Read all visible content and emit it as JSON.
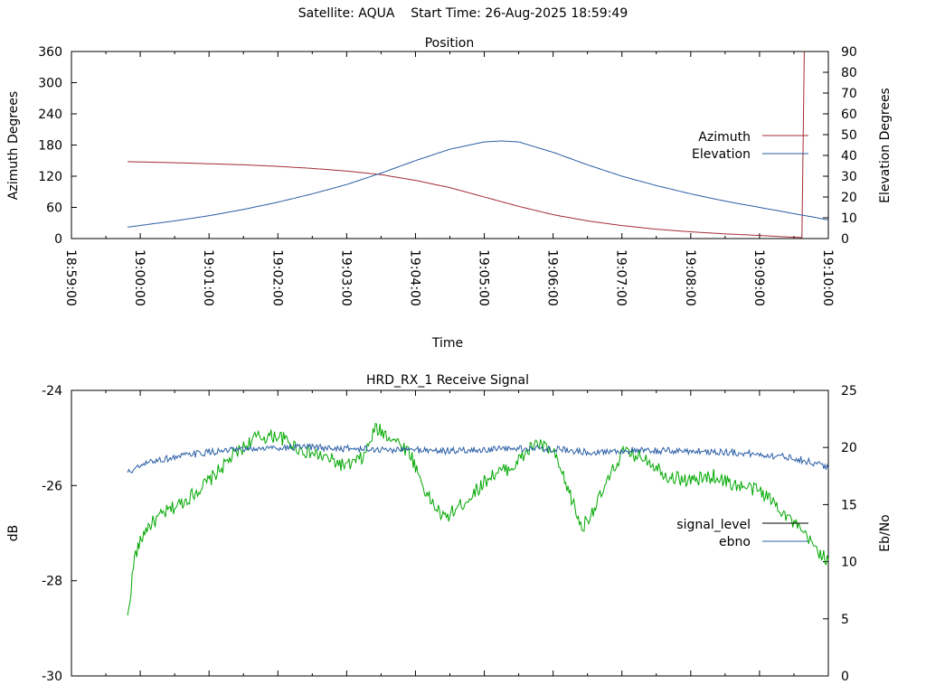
{
  "header": {
    "satellite_label": "Satellite: AQUA",
    "start_label": "Start Time: 26-Aug-2025 18:59:49"
  },
  "colors": {
    "azimuth": "#a32a35",
    "elevation": "#2a5ea5",
    "signal_level": "#00a800",
    "ebno": "#2a5ea5",
    "axis": "#000000"
  },
  "chart_data": [
    {
      "type": "line",
      "title": "Position",
      "xlabel": "Time",
      "ylabel": "Azimuth Degrees",
      "y2label": "Elevation Degrees",
      "xlim": [
        "18:59:00",
        "19:10:00"
      ],
      "ylim": [
        0,
        360
      ],
      "y2lim": [
        0,
        90
      ],
      "x_ticks": [
        "18:59:00",
        "19:00:00",
        "19:01:00",
        "19:02:00",
        "19:03:00",
        "19:04:00",
        "19:05:00",
        "19:06:00",
        "19:07:00",
        "19:08:00",
        "19:09:00",
        "19:10:00"
      ],
      "y_ticks": [
        "0",
        "60",
        "120",
        "180",
        "240",
        "300",
        "360"
      ],
      "y2_ticks": [
        "0",
        "10",
        "20",
        "30",
        "40",
        "50",
        "60",
        "70",
        "80",
        "90"
      ],
      "legend_position": "right",
      "series": [
        {
          "name": "Azimuth",
          "axis": "y",
          "x": [
            "18:59:49",
            "19:00:30",
            "19:01:00",
            "19:01:30",
            "19:02:00",
            "19:02:30",
            "19:03:00",
            "19:03:30",
            "19:04:00",
            "19:04:30",
            "19:05:00",
            "19:05:30",
            "19:06:00",
            "19:06:30",
            "19:07:00",
            "19:07:30",
            "19:08:00",
            "19:08:30",
            "19:09:00",
            "19:09:25",
            "19:09:38",
            "19:09:39"
          ],
          "y": [
            148,
            146,
            144,
            142,
            139,
            135,
            130,
            123,
            112,
            98,
            80,
            62,
            46,
            34,
            25,
            18,
            13,
            9,
            6,
            3,
            2,
            360
          ]
        },
        {
          "name": "Elevation",
          "axis": "y2",
          "x": [
            "18:59:49",
            "19:00:30",
            "19:01:00",
            "19:01:30",
            "19:02:00",
            "19:02:30",
            "19:03:00",
            "19:03:30",
            "19:04:00",
            "19:04:30",
            "19:05:00",
            "19:05:15",
            "19:05:30",
            "19:06:00",
            "19:06:30",
            "19:07:00",
            "19:07:30",
            "19:08:00",
            "19:08:30",
            "19:09:00",
            "19:09:30",
            "19:10:00"
          ],
          "y": [
            5.5,
            8.5,
            11,
            14,
            17.5,
            21.5,
            26,
            31.5,
            37.5,
            43,
            46.5,
            47,
            46.5,
            41.5,
            35.5,
            30,
            25.5,
            21.5,
            18,
            15,
            12,
            9
          ]
        }
      ]
    },
    {
      "type": "line",
      "title": "HRD_RX_1 Receive Signal",
      "xlabel": "",
      "ylabel": "dB",
      "y2label": "Eb/No",
      "xlim": [
        "18:59:00",
        "19:10:00"
      ],
      "ylim": [
        -30,
        -24
      ],
      "y2lim": [
        0,
        25
      ],
      "y_ticks": [
        "-30",
        "-28",
        "-26",
        "-24"
      ],
      "y2_ticks": [
        "0",
        "5",
        "10",
        "15",
        "20",
        "25"
      ],
      "legend_position": "right",
      "series": [
        {
          "name": "signal_level",
          "axis": "y",
          "x": [
            "18:59:49",
            "18:59:55",
            "19:00:05",
            "19:00:20",
            "19:00:40",
            "19:01:00",
            "19:01:20",
            "19:01:40",
            "19:02:00",
            "19:02:20",
            "19:02:40",
            "19:03:00",
            "19:03:15",
            "19:03:25",
            "19:03:40",
            "19:03:55",
            "19:04:10",
            "19:04:25",
            "19:04:45",
            "19:05:05",
            "19:05:25",
            "19:05:45",
            "19:06:00",
            "19:06:15",
            "19:06:25",
            "19:06:40",
            "19:07:00",
            "19:07:20",
            "19:07:40",
            "19:08:00",
            "19:08:20",
            "19:08:40",
            "19:09:00",
            "19:09:15",
            "19:09:30",
            "19:09:45",
            "19:10:00"
          ],
          "y": [
            -28.8,
            -27.5,
            -26.9,
            -26.6,
            -26.3,
            -25.9,
            -25.4,
            -25.0,
            -24.95,
            -25.25,
            -25.4,
            -25.6,
            -25.4,
            -24.8,
            -25.0,
            -25.3,
            -26.2,
            -26.7,
            -26.3,
            -25.8,
            -25.6,
            -25.1,
            -25.3,
            -26.2,
            -26.9,
            -26.3,
            -25.3,
            -25.4,
            -25.8,
            -25.9,
            -25.8,
            -26.0,
            -26.1,
            -26.4,
            -26.8,
            -27.2,
            -27.6
          ],
          "noise_amplitude": 0.15
        },
        {
          "name": "ebno",
          "axis": "y2",
          "x": [
            "18:59:49",
            "19:00:10",
            "19:00:40",
            "19:01:00",
            "19:01:30",
            "19:02:00",
            "19:02:30",
            "19:03:00",
            "19:03:30",
            "19:04:00",
            "19:04:30",
            "19:05:00",
            "19:05:30",
            "19:06:00",
            "19:06:30",
            "19:07:00",
            "19:07:30",
            "19:08:00",
            "19:08:30",
            "19:09:00",
            "19:09:30",
            "19:10:00"
          ],
          "y": [
            17.8,
            18.8,
            19.3,
            19.6,
            19.8,
            20.0,
            20.0,
            19.9,
            19.8,
            19.8,
            19.7,
            19.8,
            19.9,
            19.9,
            19.6,
            19.7,
            19.7,
            19.7,
            19.6,
            19.4,
            19.1,
            18.3
          ],
          "noise_amplitude": 0.15
        }
      ]
    }
  ]
}
